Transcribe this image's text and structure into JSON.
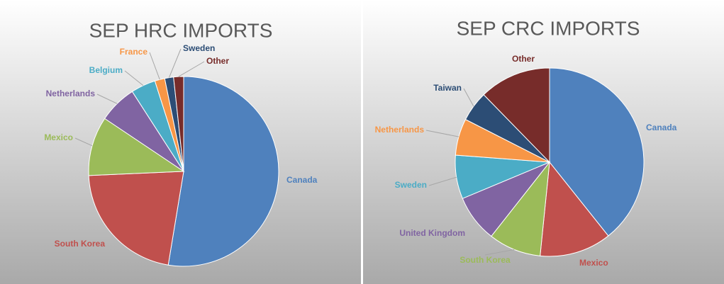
{
  "chart_data": [
    {
      "type": "pie",
      "title": "SEP HRC IMPORTS",
      "categories": [
        "Canada",
        "South Korea",
        "Mexico",
        "Netherlands",
        "Belgium",
        "France",
        "Sweden",
        "Other"
      ],
      "values": [
        52.6,
        21.7,
        10.1,
        6.5,
        4.2,
        1.7,
        1.5,
        1.7
      ],
      "colors": [
        "#4f81bd",
        "#c0504d",
        "#9bbb59",
        "#8064a2",
        "#4bacc6",
        "#f79646",
        "#2c4d75",
        "#772c2a"
      ]
    },
    {
      "type": "pie",
      "title": "SEP CRC IMPORTS",
      "categories": [
        "Canada",
        "Mexico",
        "South Korea",
        "United Kingdom",
        "Sweden",
        "Netherlands",
        "Taiwan",
        "Other"
      ],
      "values": [
        39.3,
        12.3,
        9.0,
        8.1,
        7.5,
        6.3,
        5.2,
        12.3
      ],
      "colors": [
        "#4f81bd",
        "#c0504d",
        "#9bbb59",
        "#8064a2",
        "#4bacc6",
        "#f79646",
        "#2c4d75",
        "#772c2a"
      ]
    }
  ]
}
